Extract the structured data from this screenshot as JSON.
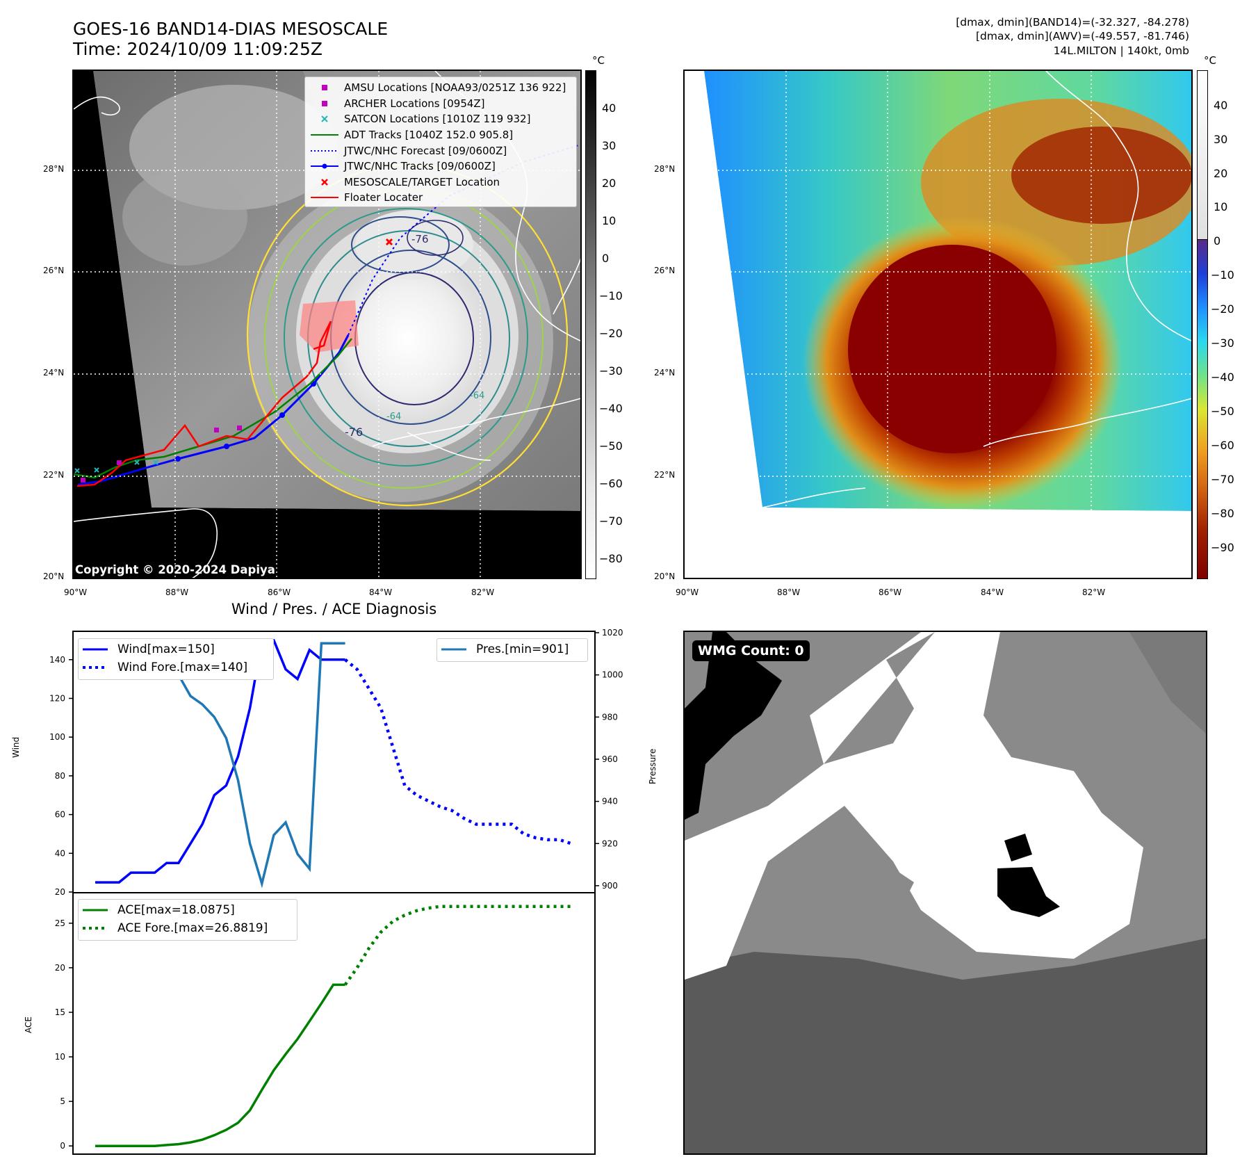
{
  "header": {
    "title_line1": "GOES-16 BAND14-DIAS MESOSCALE",
    "title_line2": "Time: 2024/10/09 11:09:25Z",
    "info_line1": "[dmax, dmin](BAND14)=(-32.327, -84.278)",
    "info_line2": "[dmax, dmin](AWV)=(-49.557, -81.746)",
    "info_line3": "14L.MILTON | 140kt, 0mb"
  },
  "map_axes": {
    "lat_labels": [
      "28°N",
      "26°N",
      "24°N",
      "22°N",
      "20°N"
    ],
    "lon_labels": [
      "90°W",
      "88°W",
      "86°W",
      "84°W",
      "82°W"
    ]
  },
  "left_map": {
    "legend": [
      {
        "label": "AMSU Locations [NOAA93/0251Z 136 922]",
        "color": "#c000c0",
        "symbol": "square"
      },
      {
        "label": "ARCHER Locations [0954Z]",
        "color": "#c000c0",
        "symbol": "square"
      },
      {
        "label": "SATCON Locations [1010Z 119 932]",
        "color": "#20b8b8",
        "symbol": "x"
      },
      {
        "label": "ADT Tracks [1040Z 152.0 905.8]",
        "color": "#008000",
        "symbol": "line"
      },
      {
        "label": "JTWC/NHC Forecast [09/0600Z]",
        "color": "#0000ff",
        "symbol": "dotted"
      },
      {
        "label": "JTWC/NHC Tracks [09/0600Z]",
        "color": "#0000ff",
        "symbol": "line-dot"
      },
      {
        "label": "MESOSCALE/TARGET Location",
        "color": "#ff0000",
        "symbol": "x"
      },
      {
        "label": "Floater Locater",
        "color": "#ff0000",
        "symbol": "line"
      }
    ],
    "contour_labels": [
      "-76",
      "-76",
      "-64",
      "-64"
    ],
    "copyright": "Copyright © 2020-2024 Dapiya",
    "colorbar": {
      "unit": "°C",
      "ticks": [
        "40",
        "30",
        "20",
        "10",
        "0",
        "−10",
        "−20",
        "−30",
        "−40",
        "−50",
        "−60",
        "−70",
        "−80"
      ]
    }
  },
  "right_map": {
    "colorbar": {
      "unit": "°C",
      "ticks": [
        "40",
        "30",
        "20",
        "10",
        "0",
        "−10",
        "−20",
        "−30",
        "−40",
        "−50",
        "−60",
        "−70",
        "−80",
        "−90"
      ]
    }
  },
  "diag": {
    "title": "Wind / Pres. / ACE Diagnosis",
    "wind_label": "Wind",
    "pressure_label": "Pressure",
    "ace_label": "ACE"
  },
  "wmg": {
    "badge": "WMG Count: 0"
  },
  "chart_data": [
    {
      "type": "line",
      "title": "Wind / Pres. / ACE Diagnosis",
      "ylabel": "Wind",
      "ylim": [
        20,
        155
      ],
      "y_ticks": [
        20,
        40,
        60,
        80,
        100,
        120,
        140
      ],
      "y2label": "Pressure",
      "y2lim": [
        897,
        1021
      ],
      "y2_ticks": [
        900,
        920,
        940,
        960,
        980,
        1000,
        1020
      ],
      "x": [
        0,
        1,
        2,
        3,
        4,
        5,
        6,
        7,
        8,
        9,
        10,
        11,
        12,
        13,
        14,
        15,
        16,
        17,
        18,
        19,
        20,
        21,
        22,
        23,
        24,
        25,
        26,
        27,
        28,
        29,
        30,
        31,
        32,
        33,
        34,
        35,
        36,
        37,
        38,
        39,
        40
      ],
      "series": [
        {
          "name": "Wind[max=150]",
          "color": "#0000ff",
          "style": "solid",
          "x": [
            0,
            1,
            2,
            3,
            4,
            5,
            6,
            7,
            8,
            9,
            10,
            11,
            12,
            13,
            14,
            15,
            16,
            17,
            18,
            19,
            20,
            21
          ],
          "values": [
            25,
            25,
            25,
            30,
            30,
            30,
            35,
            35,
            45,
            55,
            70,
            75,
            90,
            115,
            150,
            150,
            135,
            130,
            145,
            140,
            140,
            140
          ]
        },
        {
          "name": "Wind Fore.[max=140]",
          "color": "#0000ff",
          "style": "dotted",
          "x": [
            21,
            22,
            23,
            24,
            25,
            26,
            27,
            28,
            29,
            30,
            31,
            32,
            33,
            34,
            35,
            36,
            37,
            38,
            39,
            40
          ],
          "values": [
            140,
            135,
            125,
            115,
            95,
            75,
            70,
            67,
            64,
            62,
            58,
            55,
            55,
            55,
            55,
            50,
            48,
            47,
            47,
            45
          ]
        },
        {
          "name": "Pres.[min=901]",
          "color": "#1f77b4",
          "style": "solid",
          "axis": "right",
          "x": [
            0,
            1,
            2,
            3,
            4,
            5,
            6,
            7,
            8,
            9,
            10,
            11,
            12,
            13,
            14,
            15,
            16,
            17,
            18,
            19,
            20,
            21
          ],
          "values": [
            1015,
            1015,
            1015,
            1010,
            1010,
            1008,
            1008,
            1000,
            990,
            986,
            980,
            970,
            950,
            920,
            901,
            924,
            930,
            915,
            908,
            1015,
            1015,
            1015
          ]
        }
      ],
      "legend": [
        "Wind[max=150]",
        "Wind Fore.[max=140]",
        "Pres.[min=901]"
      ]
    },
    {
      "type": "line",
      "ylabel": "ACE",
      "ylim": [
        -1,
        28.5
      ],
      "y_ticks": [
        0,
        5,
        10,
        15,
        20,
        25
      ],
      "series": [
        {
          "name": "ACE[max=18.0875]",
          "color": "#008000",
          "style": "solid",
          "x": [
            0,
            1,
            2,
            3,
            4,
            5,
            6,
            7,
            8,
            9,
            10,
            11,
            12,
            13,
            14,
            15,
            16,
            17,
            18,
            19,
            20,
            21
          ],
          "values": [
            0,
            0,
            0,
            0,
            0,
            0,
            0.1,
            0.2,
            0.4,
            0.7,
            1.2,
            1.8,
            2.6,
            4.0,
            6.3,
            8.5,
            10.3,
            12.0,
            14.0,
            16.0,
            18.0875,
            18.0875
          ]
        },
        {
          "name": "ACE Fore.[max=26.8819]",
          "color": "#008000",
          "style": "dotted",
          "x": [
            21,
            22,
            23,
            24,
            25,
            26,
            27,
            28,
            29,
            30,
            31,
            32,
            33,
            34,
            35,
            36,
            37,
            38,
            39,
            40
          ],
          "values": [
            18.0875,
            20.0,
            22.2,
            24.0,
            25.2,
            25.9,
            26.4,
            26.7,
            26.8819,
            26.8819,
            26.8819,
            26.8819,
            26.8819,
            26.8819,
            26.8819,
            26.8819,
            26.8819,
            26.8819,
            26.8819,
            26.8819
          ]
        }
      ],
      "legend": [
        "ACE[max=18.0875]",
        "ACE Fore.[max=26.8819]"
      ]
    }
  ]
}
